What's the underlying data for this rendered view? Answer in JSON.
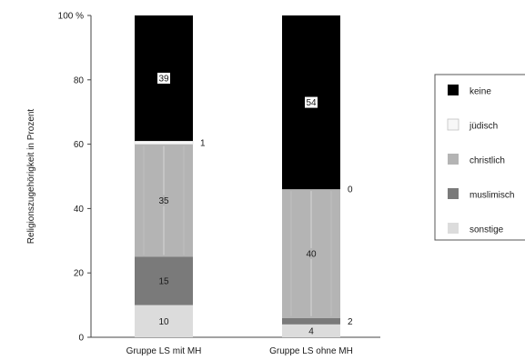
{
  "chart_data": {
    "type": "bar",
    "stacked": true,
    "orientation": "vertical",
    "ylabel": "Religionszugehörigkeit in Prozent",
    "xlabel": "",
    "ylim": [
      0,
      100
    ],
    "yticks": [
      0,
      20,
      40,
      60,
      80,
      100
    ],
    "ytick_labels": [
      "0",
      "20",
      "40",
      "60",
      "80",
      "100 %"
    ],
    "grid": false,
    "legend_position": "right",
    "categories": [
      "Gruppe LS mit MH",
      "Gruppe LS ohne MH"
    ],
    "series": [
      {
        "name": "sonstige",
        "color": "#dcdcdc",
        "values": [
          10,
          4
        ]
      },
      {
        "name": "muslimisch",
        "color": "#7a7a7a",
        "values": [
          15,
          2
        ]
      },
      {
        "name": "christlich",
        "color": "#b4b4b4",
        "values": [
          35,
          40
        ]
      },
      {
        "name": "jüdisch",
        "color": "#f7f7f7",
        "values": [
          1,
          0
        ]
      },
      {
        "name": "keine",
        "color": "#000000",
        "values": [
          39,
          54
        ]
      }
    ],
    "data_labels": [
      [
        "10",
        "4"
      ],
      [
        "15",
        "2"
      ],
      [
        "35",
        "40"
      ],
      [
        "1",
        "0"
      ],
      [
        "39",
        "54"
      ]
    ],
    "legend": [
      "keine",
      "jüdisch",
      "christlich",
      "muslimisch",
      "sonstige"
    ]
  }
}
